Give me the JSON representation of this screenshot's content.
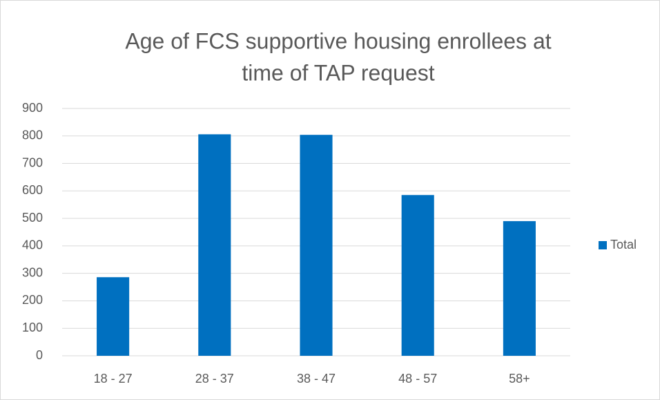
{
  "chart_data": {
    "type": "bar",
    "title": [
      "Age of FCS supportive housing enrollees at",
      "time of TAP request"
    ],
    "categories": [
      "18 - 27",
      "28 - 37",
      "38 - 47",
      "48 - 57",
      "58+"
    ],
    "series": [
      {
        "name": "Total",
        "color": "#0070c0",
        "values": [
          286,
          806,
          804,
          585,
          490
        ]
      }
    ],
    "ylim": [
      0,
      900
    ],
    "yticks": [
      0,
      100,
      200,
      300,
      400,
      500,
      600,
      700,
      800,
      900
    ],
    "grid": true,
    "legend": "right"
  }
}
